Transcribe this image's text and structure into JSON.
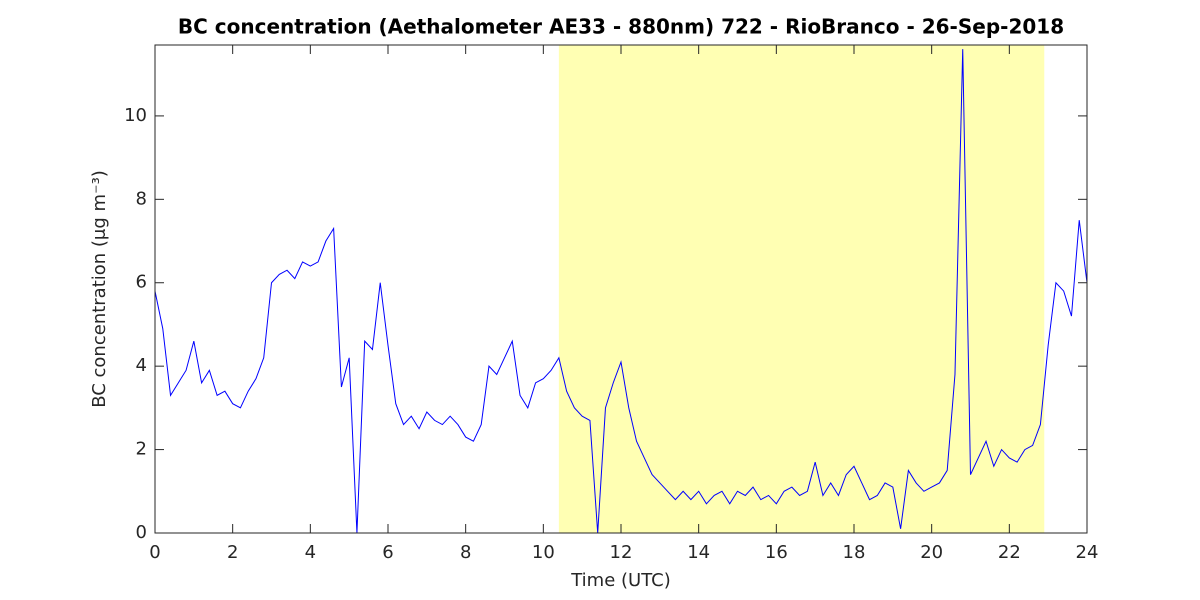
{
  "chart_data": {
    "type": "line",
    "title": "BC concentration (Aethalometer AE33 - 880nm) 722 - RioBranco - 26-Sep-2018",
    "xlabel": "Time (UTC)",
    "ylabel": "BC concentration (μg m⁻³)",
    "x": [
      0,
      0.2,
      0.4,
      0.6,
      0.8,
      1,
      1.2,
      1.4,
      1.6,
      1.8,
      2,
      2.2,
      2.4,
      2.6,
      2.8,
      3,
      3.2,
      3.4,
      3.6,
      3.8,
      4,
      4.2,
      4.4,
      4.6,
      4.8,
      5,
      5.2,
      5.4,
      5.6,
      5.8,
      6,
      6.2,
      6.4,
      6.6,
      6.8,
      7,
      7.2,
      7.4,
      7.6,
      7.8,
      8,
      8.2,
      8.4,
      8.6,
      8.8,
      9,
      9.2,
      9.4,
      9.6,
      9.8,
      10,
      10.2,
      10.4,
      10.6,
      10.8,
      11,
      11.2,
      11.4,
      11.6,
      11.8,
      12,
      12.2,
      12.4,
      12.6,
      12.8,
      13,
      13.2,
      13.4,
      13.6,
      13.8,
      14,
      14.2,
      14.4,
      14.6,
      14.8,
      15,
      15.2,
      15.4,
      15.6,
      15.8,
      16,
      16.2,
      16.4,
      16.6,
      16.8,
      17,
      17.2,
      17.4,
      17.6,
      17.8,
      18,
      18.2,
      18.4,
      18.6,
      18.8,
      19,
      19.2,
      19.4,
      19.6,
      19.8,
      20,
      20.2,
      20.4,
      20.6,
      20.8,
      21,
      21.2,
      21.4,
      21.6,
      21.8,
      22,
      22.2,
      22.4,
      22.6,
      22.8,
      23,
      23.2,
      23.4,
      23.6,
      23.8,
      24
    ],
    "values": [
      5.8,
      4.9,
      3.3,
      3.6,
      3.9,
      4.6,
      3.6,
      3.9,
      3.3,
      3.4,
      3.1,
      3.0,
      3.4,
      3.7,
      4.2,
      6.0,
      6.2,
      6.3,
      6.1,
      6.5,
      6.4,
      6.5,
      7.0,
      7.3,
      3.5,
      4.2,
      0.0,
      4.6,
      4.4,
      6.0,
      4.5,
      3.1,
      2.6,
      2.8,
      2.5,
      2.9,
      2.7,
      2.6,
      2.8,
      2.6,
      2.3,
      2.2,
      2.6,
      4.0,
      3.8,
      4.2,
      4.6,
      3.3,
      3.0,
      3.6,
      3.7,
      3.9,
      4.2,
      3.4,
      3.0,
      2.8,
      2.7,
      0.0,
      3.0,
      3.6,
      4.1,
      3.0,
      2.2,
      1.8,
      1.4,
      1.2,
      1.0,
      0.8,
      1.0,
      0.8,
      1.0,
      0.7,
      0.9,
      1.0,
      0.7,
      1.0,
      0.9,
      1.1,
      0.8,
      0.9,
      0.7,
      1.0,
      1.1,
      0.9,
      1.0,
      1.7,
      0.9,
      1.2,
      0.9,
      1.4,
      1.6,
      1.2,
      0.8,
      0.9,
      1.2,
      1.1,
      0.1,
      1.5,
      1.2,
      1.0,
      1.1,
      1.2,
      1.5,
      3.8,
      11.6,
      1.4,
      1.8,
      2.2,
      1.6,
      2.0,
      1.8,
      1.7,
      2.0,
      2.1,
      2.6,
      4.5,
      6.0,
      5.8,
      5.2,
      7.5,
      6.0
    ],
    "color": "#0000ff",
    "shaded_span": {
      "x": [
        10.4,
        22.9
      ],
      "color": "#ffffb3"
    },
    "xlim": [
      0,
      24
    ],
    "xticks": [
      0,
      2,
      4,
      6,
      8,
      10,
      12,
      14,
      16,
      18,
      20,
      22,
      24
    ],
    "ylim": [
      0,
      11.7
    ],
    "yticks": [
      0,
      2,
      4,
      6,
      8,
      10
    ],
    "grid": false
  }
}
